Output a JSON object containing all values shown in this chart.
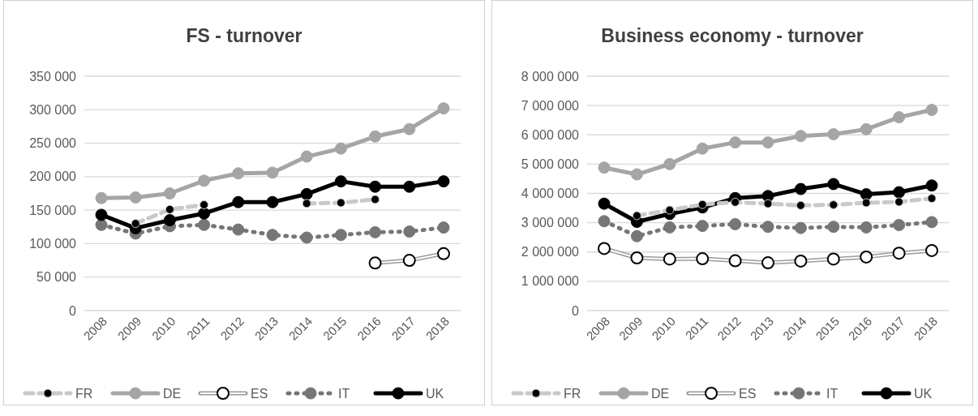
{
  "chart_data": [
    {
      "type": "line",
      "title": "FS - turnover",
      "categories": [
        "2008",
        "2009",
        "2010",
        "2011",
        "2012",
        "2013",
        "2014",
        "2015",
        "2016",
        "2017",
        "2018"
      ],
      "series": [
        {
          "name": "FR",
          "color": "#c9c9c9",
          "line_style": "dashed",
          "values": [
            null,
            130000,
            151000,
            158000,
            null,
            null,
            160000,
            161000,
            166000,
            null,
            null
          ]
        },
        {
          "name": "DE",
          "color": "#a5a5a5",
          "line_style": "solid",
          "values": [
            168000,
            169000,
            175000,
            194000,
            205000,
            206000,
            230000,
            242000,
            260000,
            271000,
            302000
          ]
        },
        {
          "name": "ES",
          "color": "#9a9a9a",
          "line_style": "solid",
          "values": [
            null,
            null,
            null,
            null,
            null,
            null,
            null,
            null,
            71000,
            75000,
            85000
          ]
        },
        {
          "name": "IT",
          "color": "#767676",
          "line_style": "dotted",
          "values": [
            128000,
            115000,
            126000,
            128000,
            121000,
            113000,
            109000,
            113000,
            117000,
            118000,
            124000
          ]
        },
        {
          "name": "UK",
          "color": "#000000",
          "line_style": "solid",
          "values": [
            143000,
            123000,
            135000,
            145000,
            162000,
            162000,
            174000,
            193000,
            185000,
            185000,
            193000
          ]
        }
      ],
      "ylim": [
        0,
        350000
      ],
      "yticks": [
        0,
        {
          "value": 50000,
          "label": "50 000"
        },
        {
          "value": 100000,
          "label": "100 000"
        },
        {
          "value": 150000,
          "label": "150 000"
        },
        {
          "value": 200000,
          "label": "200 000"
        },
        {
          "value": 250000,
          "label": "250 000"
        },
        {
          "value": 300000,
          "label": "300 000"
        },
        {
          "value": 350000,
          "label": "350 000"
        }
      ],
      "grid": "y",
      "legend": "bottom",
      "marker": "circle"
    },
    {
      "type": "line",
      "title": "Business economy - turnover",
      "categories": [
        "2008",
        "2009",
        "2010",
        "2011",
        "2012",
        "2013",
        "2014",
        "2015",
        "2016",
        "2017",
        "2018"
      ],
      "series": [
        {
          "name": "FR",
          "color": "#c9c9c9",
          "line_style": "dashed",
          "values": [
            null,
            3240000,
            3430000,
            3620000,
            3700000,
            3650000,
            3590000,
            3610000,
            3680000,
            3710000,
            3830000
          ]
        },
        {
          "name": "DE",
          "color": "#a5a5a5",
          "line_style": "solid",
          "values": [
            4880000,
            4650000,
            5000000,
            5530000,
            5740000,
            5740000,
            5960000,
            6020000,
            6190000,
            6600000,
            6850000
          ]
        },
        {
          "name": "ES",
          "color": "#9a9a9a",
          "line_style": "solid",
          "values": [
            2120000,
            1800000,
            1760000,
            1770000,
            1700000,
            1630000,
            1690000,
            1760000,
            1830000,
            1960000,
            2050000
          ]
        },
        {
          "name": "IT",
          "color": "#767676",
          "line_style": "dotted",
          "values": [
            3050000,
            2540000,
            2840000,
            2890000,
            2950000,
            2860000,
            2820000,
            2860000,
            2840000,
            2920000,
            3020000
          ]
        },
        {
          "name": "UK",
          "color": "#000000",
          "line_style": "solid",
          "values": [
            3650000,
            3030000,
            3300000,
            3520000,
            3840000,
            3910000,
            4150000,
            4320000,
            3970000,
            4040000,
            4270000
          ]
        }
      ],
      "ylim": [
        0,
        8000000
      ],
      "yticks": [
        0,
        {
          "value": 1000000,
          "label": "1 000 000"
        },
        {
          "value": 2000000,
          "label": "2 000 000"
        },
        {
          "value": 3000000,
          "label": "3 000 000"
        },
        {
          "value": 4000000,
          "label": "4 000 000"
        },
        {
          "value": 5000000,
          "label": "5 000 000"
        },
        {
          "value": 6000000,
          "label": "6 000 000"
        },
        {
          "value": 7000000,
          "label": "7 000 000"
        },
        {
          "value": 8000000,
          "label": "8 000 000"
        }
      ],
      "grid": "y",
      "legend": "bottom",
      "marker": "circle"
    }
  ]
}
